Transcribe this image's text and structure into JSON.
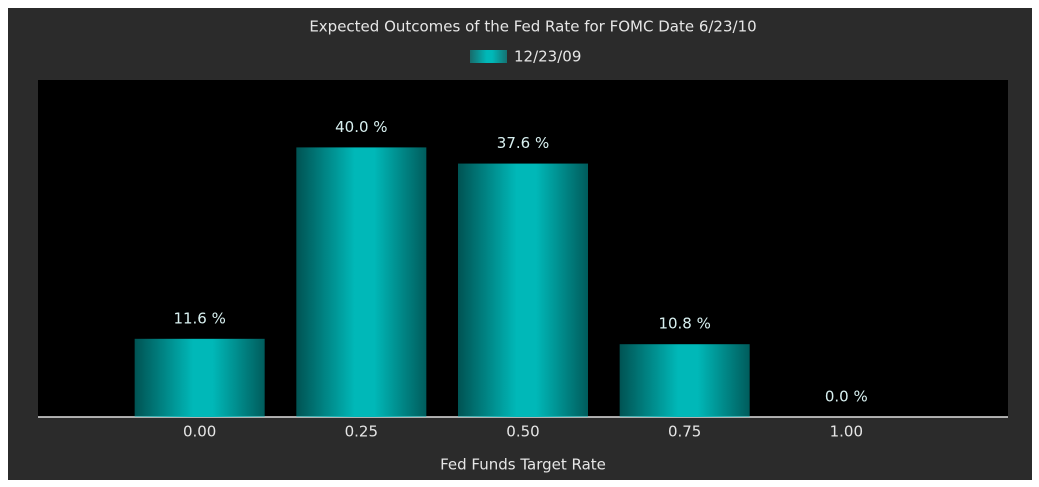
{
  "chart_data": {
    "type": "bar",
    "title": "Expected Outcomes of the Fed Rate for FOMC Date 6/23/10",
    "x_label": "Fed Funds Target Rate",
    "categories": [
      "0.00",
      "0.25",
      "0.50",
      "0.75",
      "1.00"
    ],
    "series": [
      {
        "name": "12/23/09",
        "color": "#00b8b8",
        "values": [
          11.6,
          40.0,
          37.6,
          10.8,
          0.0
        ],
        "value_labels": [
          "11.6 %",
          "40.0 %",
          "37.6 %",
          "10.8 %",
          "0.0 %"
        ]
      }
    ],
    "ylim": [
      0,
      50
    ]
  }
}
